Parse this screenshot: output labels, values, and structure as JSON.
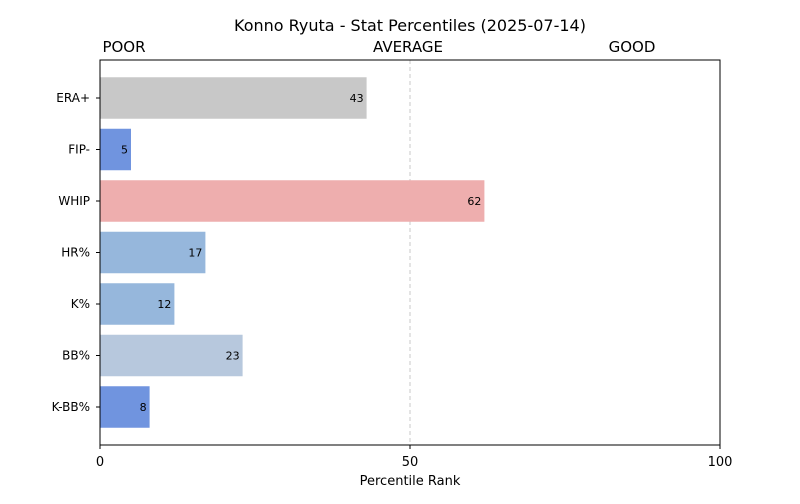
{
  "chart_data": {
    "type": "bar",
    "orientation": "horizontal",
    "title": "Konno Ryuta - Stat Percentiles (2025-07-14)",
    "xlabel": "Percentile Rank",
    "ylabel": "",
    "xlim": [
      0,
      100
    ],
    "xticks": [
      0,
      50,
      100
    ],
    "reference_line": 50,
    "zone_labels": [
      {
        "label": "POOR",
        "x": 10
      },
      {
        "label": "AVERAGE",
        "x": 50
      },
      {
        "label": "GOOD",
        "x": 90
      }
    ],
    "grid": false,
    "categories": [
      "ERA+",
      "FIP-",
      "WHIP",
      "HR%",
      "K%",
      "BB%",
      "K-BB%"
    ],
    "values": [
      43,
      5,
      62,
      17,
      12,
      23,
      8
    ],
    "colors": [
      "#c8c8c8",
      "#7094df",
      "#eeaeae",
      "#96b7dc",
      "#96b7dc",
      "#b7c8dd",
      "#7094df"
    ]
  }
}
